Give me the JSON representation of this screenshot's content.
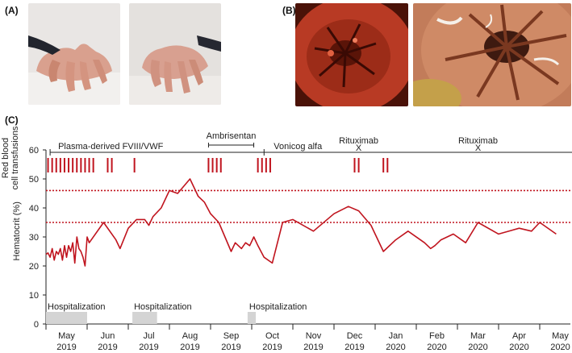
{
  "panels": {
    "a": "(A)",
    "b": "(B)",
    "c": "(C)"
  },
  "chart_data": {
    "type": "line",
    "ylabel_top": "Red blood cell transfusions",
    "ylabel": "Hematocrit (%)",
    "ylim": [
      0,
      60
    ],
    "yticks": [
      0,
      10,
      20,
      30,
      40,
      50,
      60
    ],
    "thresholds": [
      46,
      35
    ],
    "months": [
      {
        "m": "May",
        "y": "2019"
      },
      {
        "m": "Jun",
        "y": "2019"
      },
      {
        "m": "Jul",
        "y": "2019"
      },
      {
        "m": "Aug",
        "y": "2019"
      },
      {
        "m": "Sep",
        "y": "2019"
      },
      {
        "m": "Oct",
        "y": "2019"
      },
      {
        "m": "Nov",
        "y": "2019"
      },
      {
        "m": "Dec",
        "y": "2019"
      },
      {
        "m": "Jan",
        "y": "2020"
      },
      {
        "m": "Feb",
        "y": "2020"
      },
      {
        "m": "Mar",
        "y": "2020"
      },
      {
        "m": "Apr",
        "y": "2020"
      },
      {
        "m": "May",
        "y": "2020"
      }
    ],
    "x_unit": "months since start of May 2019",
    "treatments": [
      {
        "label": "Plasma-derived FVIII/VWF",
        "start": 0.1,
        "end": 5.3,
        "symbol": ""
      },
      {
        "label": "Ambrisentan",
        "start": 3.95,
        "end": 5.05,
        "symbol": ""
      },
      {
        "label": "Vonicog alfa",
        "start": 5.3,
        "end": 13.0,
        "symbol": ""
      },
      {
        "label": "Rituximab",
        "start": 7.6,
        "end": 7.6,
        "symbol": "X"
      },
      {
        "label": "Rituximab",
        "start": 10.5,
        "end": 10.5,
        "symbol": "X"
      }
    ],
    "transfusions": [
      0.05,
      0.15,
      0.25,
      0.35,
      0.45,
      0.55,
      0.65,
      0.75,
      0.85,
      0.95,
      1.05,
      1.15,
      1.5,
      1.6,
      2.15,
      3.95,
      4.05,
      4.15,
      4.25,
      5.15,
      5.25,
      5.35,
      5.45,
      7.5,
      7.6,
      8.2,
      8.3
    ],
    "hospitalizations": [
      {
        "label": "Hospitalization",
        "start": 0.0,
        "end": 1.0
      },
      {
        "label": "Hospitalization",
        "start": 2.1,
        "end": 2.7
      },
      {
        "label": "Hospitalization",
        "start": 4.9,
        "end": 5.1
      }
    ],
    "series": [
      {
        "color": "#c0141e",
        "x": [
          0.0,
          0.05,
          0.1,
          0.15,
          0.2,
          0.25,
          0.3,
          0.35,
          0.4,
          0.45,
          0.5,
          0.55,
          0.6,
          0.65,
          0.7,
          0.75,
          0.8,
          0.85,
          0.9,
          0.95,
          1.0,
          1.05,
          1.4,
          1.7,
          1.8,
          2.0,
          2.2,
          2.4,
          2.5,
          2.6,
          2.8,
          3.0,
          3.2,
          3.5,
          3.7,
          3.85,
          4.0,
          4.2,
          4.5,
          4.6,
          4.75,
          4.85,
          4.95,
          5.05,
          5.15,
          5.3,
          5.5,
          5.75,
          6.0,
          6.5,
          7.0,
          7.35,
          7.6,
          7.9,
          8.2,
          8.5,
          8.8,
          9.2,
          9.35,
          9.45,
          9.6,
          9.9,
          10.2,
          10.5,
          11.0,
          11.5,
          11.8,
          12.0,
          12.4
        ],
        "y": [
          24,
          24.5,
          23,
          26,
          22,
          25,
          24,
          26,
          22,
          27,
          23,
          27,
          25,
          28,
          21,
          30,
          26,
          25,
          23,
          20,
          30,
          28,
          35,
          29,
          26,
          33,
          36,
          36,
          34,
          37,
          40,
          46,
          45,
          50,
          44,
          42,
          38,
          35,
          25,
          28,
          26,
          28,
          27,
          30,
          27,
          23,
          21,
          35,
          36,
          32,
          38,
          40.5,
          39,
          34,
          25,
          29,
          32,
          28,
          26,
          27,
          29,
          31,
          28,
          35,
          31,
          33,
          32,
          35,
          31
        ]
      }
    ]
  }
}
